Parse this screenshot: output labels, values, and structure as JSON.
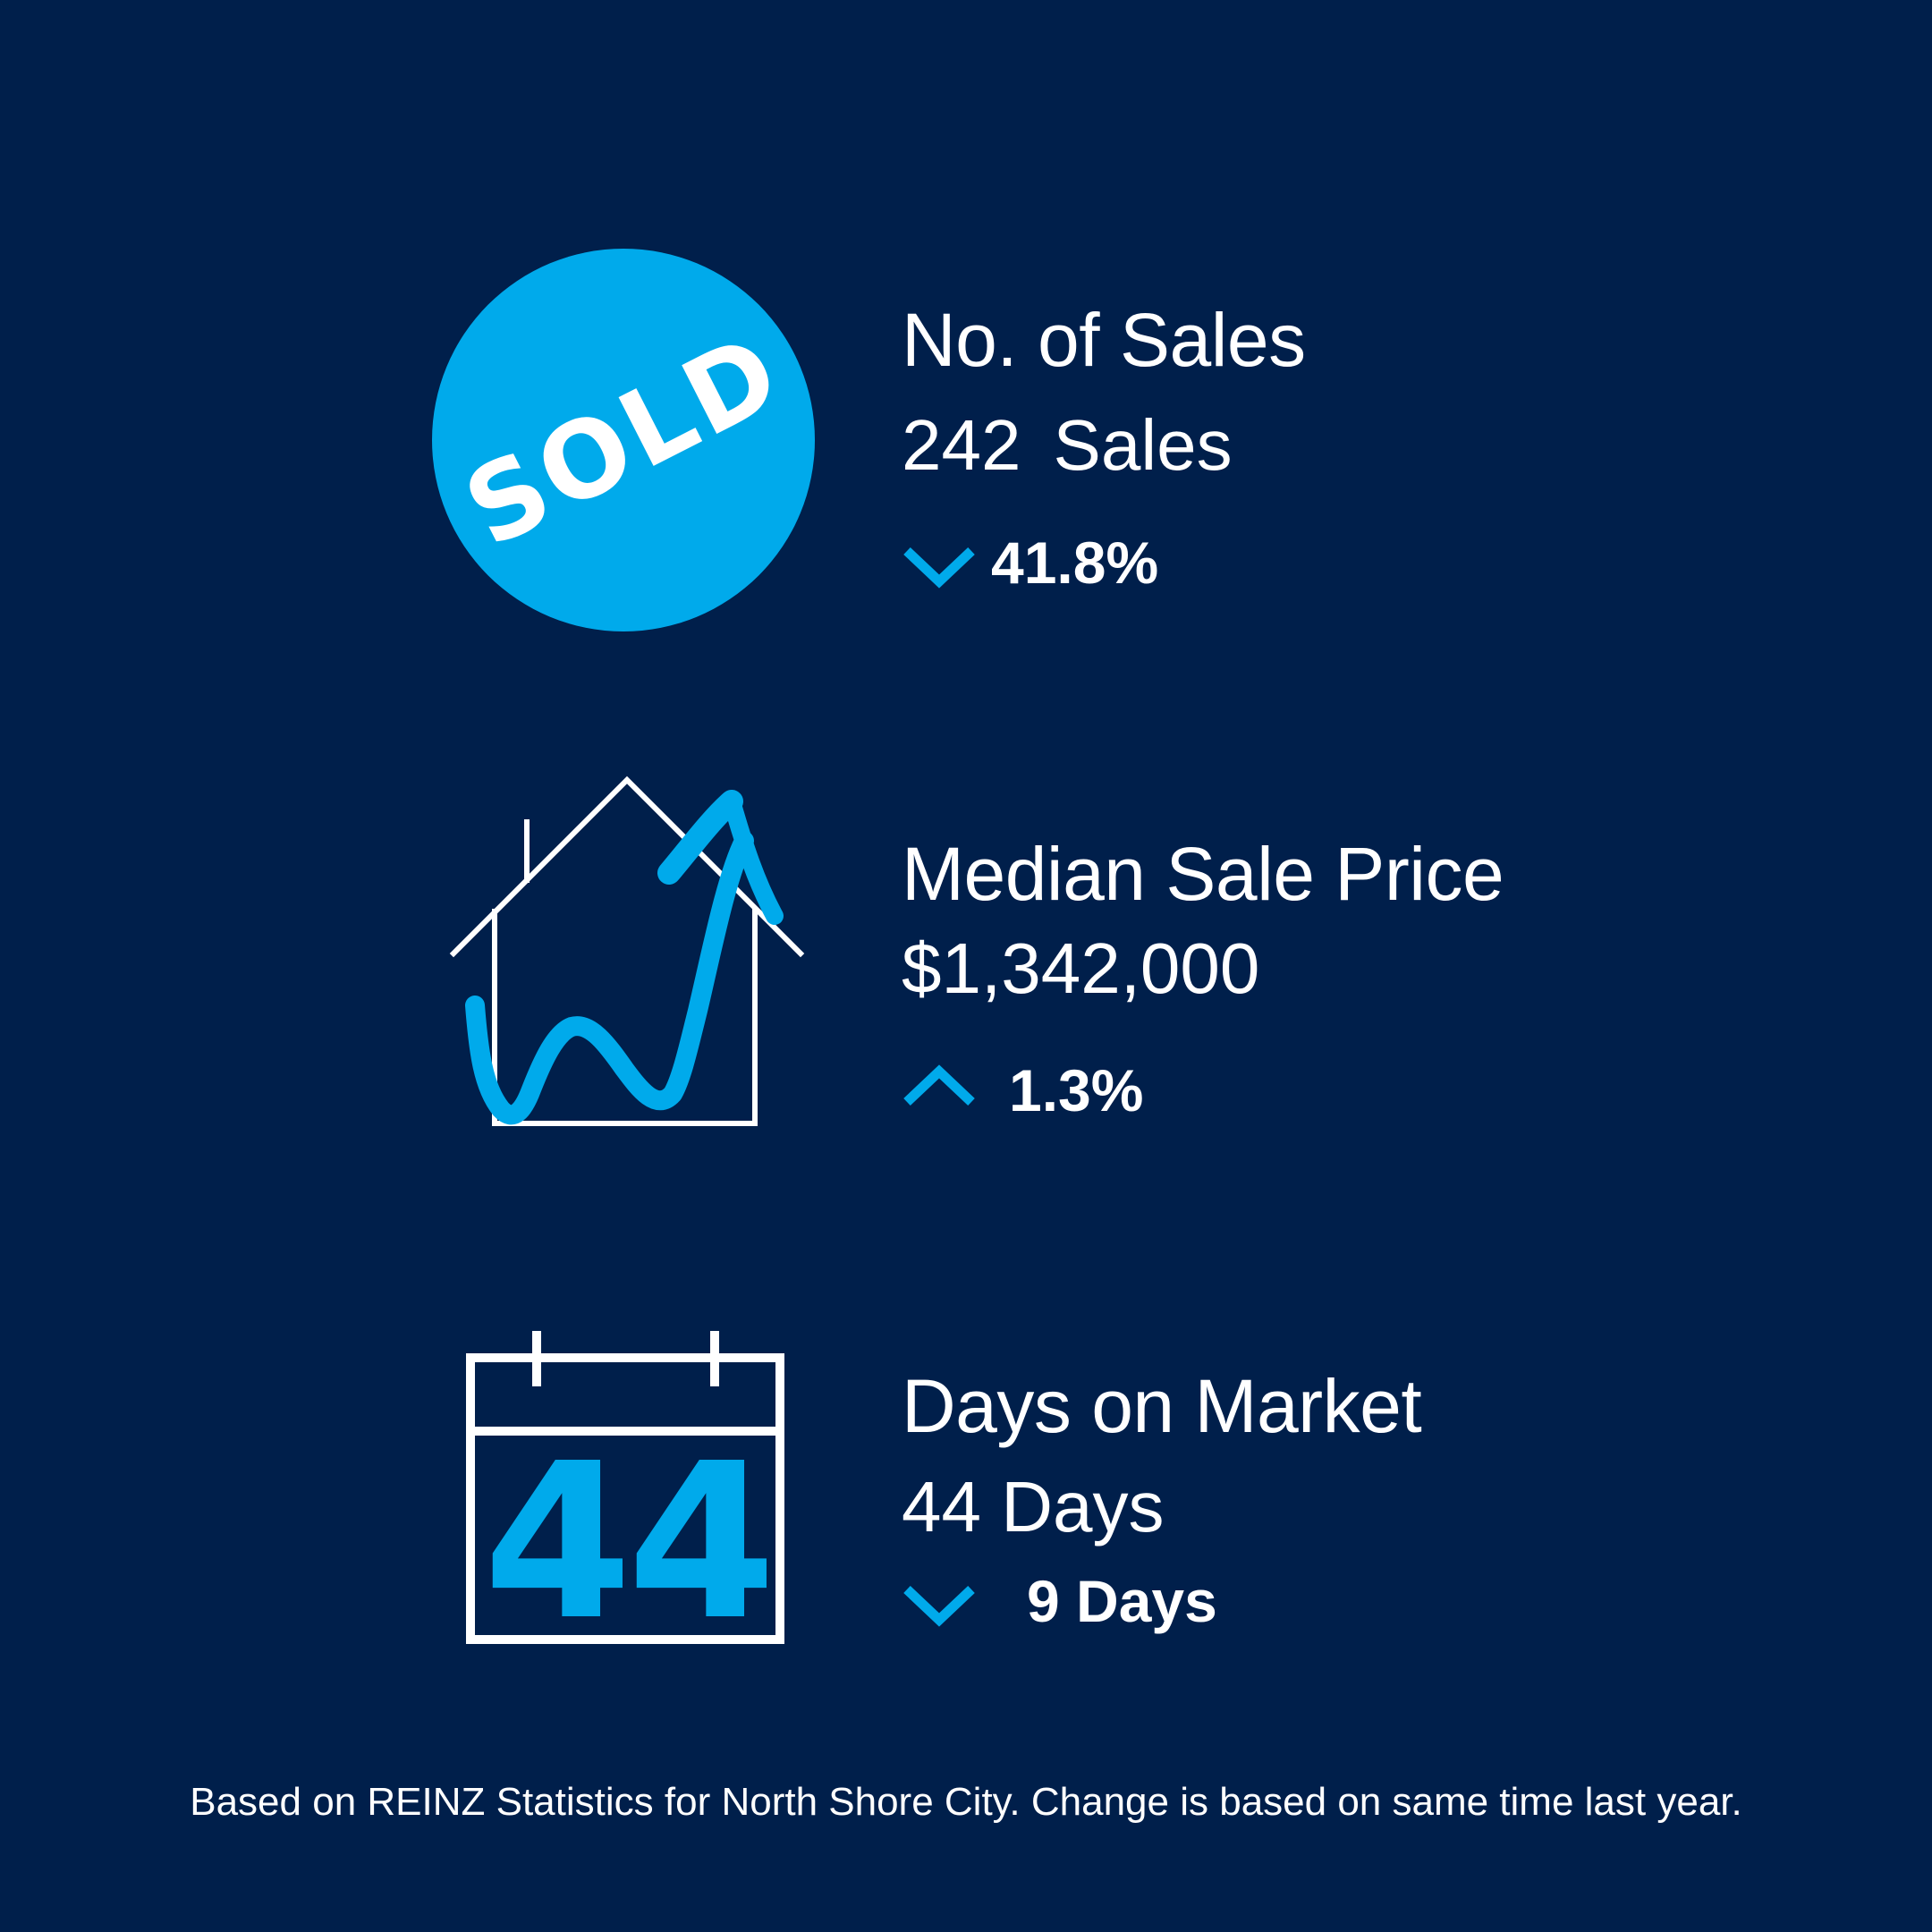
{
  "colors": {
    "background": "#001f4b",
    "accent": "#00aaeb",
    "text": "#ffffff"
  },
  "stats": [
    {
      "icon": "sold-badge-icon",
      "badge_text": "SOLD",
      "label": "No. of Sales",
      "value": "242",
      "unit": "Sales",
      "direction": "down",
      "change": "41.8%"
    },
    {
      "icon": "house-price-rising-icon",
      "label": "Median Sale Price",
      "value": "$1,342,000",
      "unit": "",
      "direction": "up",
      "change": "1.3%"
    },
    {
      "icon": "calendar-icon",
      "calendar_number": "44",
      "label": "Days on Market",
      "value": "44 Days",
      "unit": "",
      "direction": "down",
      "change": "9 Days"
    }
  ],
  "footer": "Based on REINZ Statistics for North Shore City. Change is based on same time last year."
}
